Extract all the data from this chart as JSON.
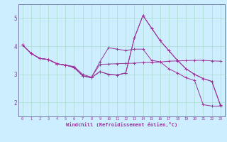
{
  "background_color": "#cceeff",
  "grid_color": "#aaddcc",
  "line_color": "#993399",
  "spine_color": "#666699",
  "xlim": [
    -0.5,
    23.5
  ],
  "ylim": [
    1.5,
    5.5
  ],
  "yticks": [
    2,
    3,
    4,
    5
  ],
  "xticks": [
    0,
    1,
    2,
    3,
    4,
    5,
    6,
    7,
    8,
    9,
    10,
    11,
    12,
    13,
    14,
    15,
    16,
    17,
    18,
    19,
    20,
    21,
    22,
    23
  ],
  "xlabel": "Windchill (Refroidissement éolien,°C)",
  "series": [
    [
      4.05,
      3.75,
      3.57,
      3.53,
      3.38,
      3.33,
      3.28,
      3.0,
      2.9,
      3.35,
      3.37,
      3.38,
      3.39,
      3.4,
      3.42,
      3.43,
      3.44,
      3.47,
      3.48,
      3.49,
      3.5,
      3.5,
      3.48,
      3.47
    ],
    [
      4.05,
      3.75,
      3.57,
      3.53,
      3.38,
      3.33,
      3.25,
      2.95,
      2.88,
      3.1,
      3.0,
      2.98,
      3.05,
      4.3,
      5.1,
      4.65,
      4.2,
      3.85,
      3.5,
      3.2,
      3.0,
      2.85,
      2.75,
      1.9
    ],
    [
      4.05,
      3.75,
      3.57,
      3.53,
      3.38,
      3.33,
      3.25,
      2.95,
      2.88,
      3.45,
      3.95,
      3.9,
      3.85,
      3.9,
      3.9,
      3.5,
      3.45,
      3.2,
      3.05,
      2.88,
      2.78,
      1.92,
      1.87,
      1.87
    ],
    [
      4.05,
      3.75,
      3.57,
      3.53,
      3.38,
      3.33,
      3.25,
      2.95,
      2.88,
      3.1,
      3.0,
      2.98,
      3.05,
      4.3,
      5.1,
      4.65,
      4.2,
      3.85,
      3.5,
      3.2,
      3.0,
      2.85,
      2.75,
      1.9
    ]
  ]
}
